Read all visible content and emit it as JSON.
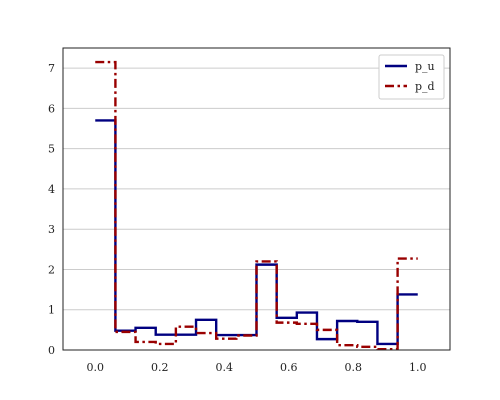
{
  "chart_data": {
    "type": "line",
    "drawstyle": "steps-post",
    "title": "",
    "xlabel": "",
    "ylabel": "",
    "xlim": [
      -0.1,
      1.1
    ],
    "ylim": [
      0,
      7.5
    ],
    "xticks": [
      0.0,
      0.2,
      0.4,
      0.6,
      0.8,
      1.0
    ],
    "xtick_labels": [
      "0.0",
      "0.2",
      "0.4",
      "0.6",
      "0.8",
      "1.0"
    ],
    "yticks": [
      0,
      1,
      2,
      3,
      4,
      5,
      6,
      7
    ],
    "ytick_labels": [
      "0",
      "1",
      "2",
      "3",
      "4",
      "5",
      "6",
      "7"
    ],
    "grid": "horizontal",
    "legend_position": "top-right",
    "series": [
      {
        "name": "p_u",
        "color": "#000080",
        "linestyle": "solid",
        "x": [
          0.0,
          0.0625,
          0.125,
          0.1875,
          0.25,
          0.3125,
          0.375,
          0.4375,
          0.5,
          0.5625,
          0.625,
          0.6875,
          0.75,
          0.8125,
          0.875,
          0.9375,
          1.0
        ],
        "y": [
          5.7,
          0.48,
          0.55,
          0.38,
          0.38,
          0.75,
          0.37,
          0.37,
          2.12,
          0.8,
          0.93,
          0.27,
          0.72,
          0.7,
          0.15,
          1.38,
          1.38
        ]
      },
      {
        "name": "p_d",
        "color": "#990000",
        "linestyle": "dashdot",
        "x": [
          0.0,
          0.0625,
          0.125,
          0.1875,
          0.25,
          0.3125,
          0.375,
          0.4375,
          0.5,
          0.5625,
          0.625,
          0.6875,
          0.75,
          0.8125,
          0.875,
          0.9375,
          1.0
        ],
        "y": [
          7.15,
          0.45,
          0.2,
          0.15,
          0.58,
          0.42,
          0.28,
          0.36,
          2.2,
          0.68,
          0.65,
          0.5,
          0.12,
          0.08,
          0.02,
          2.27,
          2.27
        ]
      }
    ]
  }
}
